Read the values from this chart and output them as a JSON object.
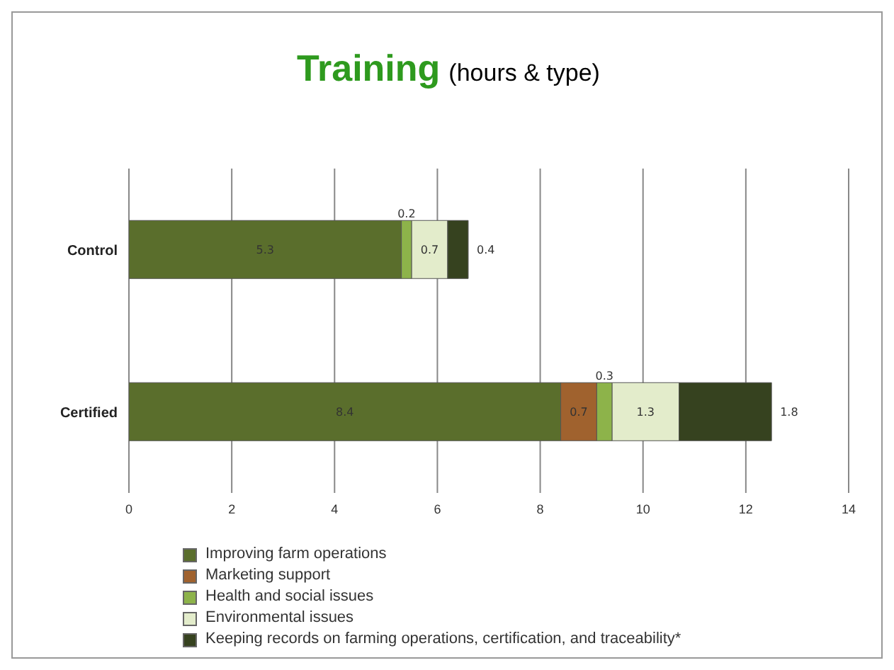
{
  "chart_data": {
    "type": "bar",
    "orientation": "horizontal",
    "stacked": true,
    "title": "Training",
    "subtitle": "(hours & type)",
    "categories": [
      "Control",
      "Certified"
    ],
    "series": [
      {
        "name": "Improving farm operations",
        "color": "#5a6e2c",
        "values": [
          5.3,
          8.4
        ],
        "value_labels": [
          "5.3",
          "8.4"
        ]
      },
      {
        "name": "Marketing support",
        "color": "#a0622e",
        "values": [
          null,
          0.7
        ],
        "value_labels": [
          null,
          "0.7"
        ]
      },
      {
        "name": "Health and social issues",
        "color": "#8db34a",
        "values": [
          0.2,
          0.3
        ],
        "value_labels": [
          "0.2",
          "0.3"
        ]
      },
      {
        "name": "Environmental issues",
        "color": "#e3eccb",
        "values": [
          0.7,
          1.3
        ],
        "value_labels": [
          "0.7",
          "1.3"
        ]
      },
      {
        "name": "Keeping records on farming operations, certification, and traceability*",
        "color": "#36421f",
        "values": [
          0.4,
          1.8
        ],
        "value_labels": [
          "0.4",
          "1.8"
        ]
      }
    ],
    "xlim": [
      0,
      14
    ],
    "xticks": [
      0,
      2,
      4,
      6,
      8,
      10,
      12,
      14
    ],
    "grid": "x",
    "legend": "bottom left"
  }
}
